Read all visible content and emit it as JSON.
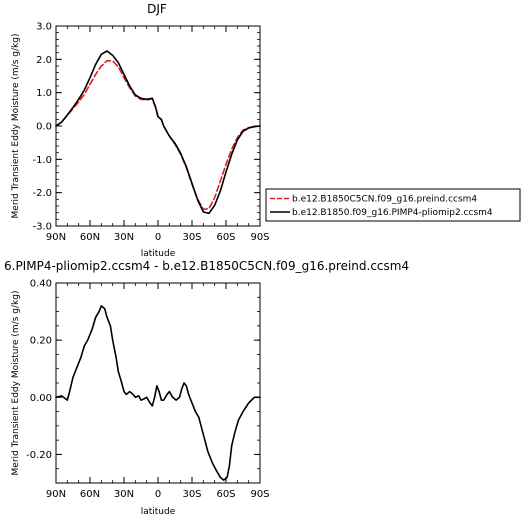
{
  "chart_data": [
    {
      "type": "line",
      "title": "DJF",
      "xlabel": "latitude",
      "ylabel": "Merid Transient Eddy Moisture (m/s g/kg)",
      "x_ticks": [
        "90N",
        "60N",
        "30N",
        "0",
        "30S",
        "60S",
        "90S"
      ],
      "x_tick_values": [
        90,
        60,
        30,
        0,
        -30,
        -60,
        -90
      ],
      "xlim": [
        90,
        -90
      ],
      "y_ticks": [
        "3.0",
        "2.0",
        "1.0",
        "0.0",
        "-1.0",
        "-2.0",
        "-3.0"
      ],
      "y_tick_values": [
        3,
        2,
        1,
        0,
        -1,
        -2,
        -3
      ],
      "ylim": [
        -3,
        3
      ],
      "grid": false,
      "legend_position": "right",
      "series": [
        {
          "name": "b.e12.B1850C5CN.f09_g16.preind.ccsm4",
          "color": "#e02020",
          "dash": "dashed",
          "x": [
            90,
            85,
            80,
            75,
            70,
            65,
            60,
            55,
            50,
            45,
            40,
            35,
            30,
            25,
            20,
            15,
            10,
            5,
            2,
            0,
            -3,
            -5,
            -10,
            -15,
            -20,
            -25,
            -30,
            -35,
            -40,
            -45,
            -50,
            -55,
            -60,
            -65,
            -70,
            -75,
            -80,
            -85,
            -90
          ],
          "y": [
            0.0,
            0.12,
            0.32,
            0.52,
            0.72,
            0.95,
            1.25,
            1.55,
            1.8,
            1.96,
            1.95,
            1.78,
            1.45,
            1.15,
            0.9,
            0.8,
            0.78,
            0.82,
            0.55,
            0.28,
            0.18,
            0.0,
            -0.3,
            -0.55,
            -0.85,
            -1.25,
            -1.75,
            -2.2,
            -2.5,
            -2.48,
            -2.15,
            -1.65,
            -1.15,
            -0.7,
            -0.35,
            -0.12,
            -0.05,
            -0.01,
            0.0
          ]
        },
        {
          "name": "b.e12.B1850.f09_g16.PIMP4-pliomip2.ccsm4",
          "color": "#000000",
          "dash": "solid",
          "x": [
            90,
            85,
            80,
            75,
            70,
            65,
            60,
            55,
            50,
            45,
            40,
            35,
            30,
            25,
            20,
            15,
            10,
            5,
            2,
            0,
            -3,
            -5,
            -10,
            -15,
            -20,
            -25,
            -30,
            -35,
            -40,
            -45,
            -50,
            -55,
            -60,
            -65,
            -70,
            -75,
            -80,
            -85,
            -90
          ],
          "y": [
            0.0,
            0.12,
            0.33,
            0.56,
            0.8,
            1.08,
            1.45,
            1.85,
            2.15,
            2.25,
            2.12,
            1.9,
            1.55,
            1.2,
            0.93,
            0.83,
            0.8,
            0.83,
            0.55,
            0.28,
            0.2,
            0.0,
            -0.3,
            -0.52,
            -0.82,
            -1.22,
            -1.72,
            -2.22,
            -2.58,
            -2.62,
            -2.38,
            -1.95,
            -1.38,
            -0.85,
            -0.42,
            -0.16,
            -0.06,
            -0.02,
            0.0
          ]
        }
      ]
    },
    {
      "type": "line",
      "title": "6.PIMP4-pliomip2.ccsm4 - b.e12.B1850C5CN.f09_g16.preind.ccsm4",
      "xlabel": "latitude",
      "ylabel": "Merid Transient Eddy Moisture (m/s g/kg)",
      "x_ticks": [
        "90N",
        "60N",
        "30N",
        "0",
        "30S",
        "60S",
        "90S"
      ],
      "x_tick_values": [
        90,
        60,
        30,
        0,
        -30,
        -60,
        -90
      ],
      "xlim": [
        90,
        -90
      ],
      "y_ticks": [
        "0.40",
        "0.20",
        "0.00",
        "-0.20"
      ],
      "y_tick_values": [
        0.4,
        0.2,
        0.0,
        -0.2
      ],
      "ylim": [
        -0.3,
        0.4
      ],
      "grid": false,
      "series": [
        {
          "color": "#000000",
          "dash": "solid",
          "x": [
            90,
            85,
            80,
            78,
            75,
            72,
            68,
            65,
            62,
            58,
            55,
            52,
            50,
            47,
            45,
            42,
            40,
            37,
            35,
            32,
            30,
            28,
            25,
            22,
            20,
            17,
            15,
            12,
            10,
            7,
            5,
            3,
            1,
            -1,
            -3,
            -5,
            -8,
            -10,
            -13,
            -16,
            -19,
            -21,
            -23,
            -25,
            -27,
            -30,
            -33,
            -36,
            -40,
            -44,
            -48,
            -52,
            -55,
            -58,
            -61,
            -63,
            -65,
            -68,
            -71,
            -75,
            -80,
            -85,
            -90
          ],
          "y": [
            0.0,
            0.005,
            -0.01,
            0.02,
            0.07,
            0.1,
            0.14,
            0.18,
            0.2,
            0.24,
            0.28,
            0.3,
            0.32,
            0.31,
            0.28,
            0.25,
            0.2,
            0.14,
            0.09,
            0.05,
            0.02,
            0.01,
            0.02,
            0.01,
            0.0,
            0.005,
            -0.01,
            -0.005,
            0.0,
            -0.02,
            -0.03,
            0.0,
            0.04,
            0.02,
            -0.01,
            -0.01,
            0.01,
            0.02,
            0.0,
            -0.01,
            0.0,
            0.03,
            0.05,
            0.04,
            0.01,
            -0.02,
            -0.05,
            -0.07,
            -0.13,
            -0.19,
            -0.23,
            -0.26,
            -0.28,
            -0.29,
            -0.28,
            -0.24,
            -0.17,
            -0.12,
            -0.08,
            -0.05,
            -0.02,
            0.0,
            0.0
          ]
        }
      ]
    }
  ]
}
